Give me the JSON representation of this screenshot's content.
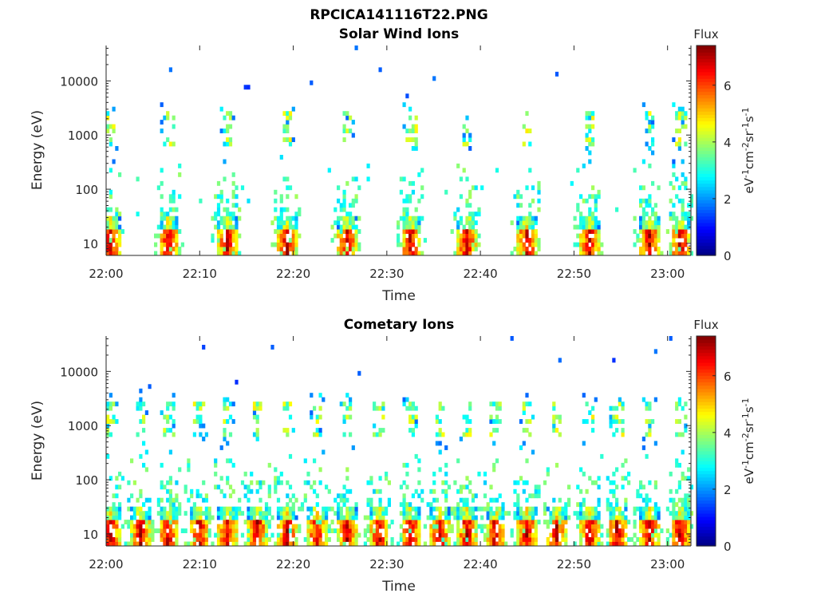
{
  "figure_title": "RPCICA141116T22.PNG",
  "chart_data": [
    {
      "type": "heatmap",
      "title": "Solar Wind Ions",
      "xlabel": "Time",
      "ylabel": "Energy (eV)",
      "x_ticks": [
        "22:00",
        "22:10",
        "22:20",
        "22:30",
        "22:40",
        "22:50",
        "23:00"
      ],
      "y_ticks": [
        "10",
        "100",
        "1000",
        "10000"
      ],
      "y_scale": "log",
      "ylim": [
        6,
        45000
      ],
      "colorbar": {
        "label": "Flux",
        "units_label": "eV-1cm-2sr-1s-1",
        "ticks": [
          "0",
          "2",
          "4",
          "6"
        ],
        "range": [
          0,
          7.4
        ],
        "colormap": "jet"
      },
      "pattern": {
        "burst_centers_min": [
          0.3,
          6.5,
          12.8,
          19.2,
          25.6,
          32.4,
          38.4,
          44.8,
          51.5,
          57.9,
          61.2
        ],
        "high_energy_bands_eV": [
          700,
          1400,
          2400
        ],
        "peak_flux": 6.8
      }
    },
    {
      "type": "heatmap",
      "title": "Cometary Ions",
      "xlabel": "Time",
      "ylabel": "Energy (eV)",
      "x_ticks": [
        "22:00",
        "22:10",
        "22:20",
        "22:30",
        "22:40",
        "22:50",
        "23:00"
      ],
      "y_ticks": [
        "10",
        "100",
        "1000",
        "10000"
      ],
      "y_scale": "log",
      "ylim": [
        6,
        45000
      ],
      "colorbar": {
        "label": "Flux",
        "units_label": "eV-1cm-2sr-1s-1",
        "ticks": [
          "0",
          "2",
          "4",
          "6"
        ],
        "range": [
          0,
          7.4
        ],
        "colormap": "jet"
      },
      "pattern": {
        "burst_centers_min": [
          0.3,
          3.5,
          6.5,
          9.8,
          12.8,
          16.0,
          19.2,
          22.4,
          25.6,
          29.0,
          32.4,
          35.5,
          38.4,
          41.5,
          44.8,
          48.0,
          51.5,
          54.5,
          57.9,
          61.2
        ],
        "high_energy_bands_eV": [
          700,
          1400,
          2400
        ],
        "peak_flux": 6.8
      }
    }
  ]
}
